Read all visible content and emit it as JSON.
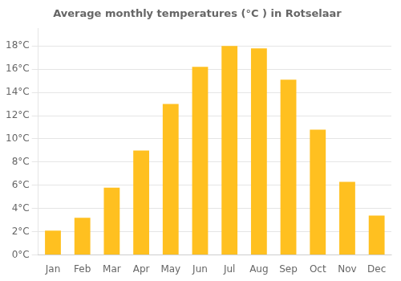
{
  "chart_data": {
    "type": "bar",
    "title": "Average monthly temperatures (°C ) in Rotselaar",
    "categories": [
      "Jan",
      "Feb",
      "Mar",
      "Apr",
      "May",
      "Jun",
      "Jul",
      "Aug",
      "Sep",
      "Oct",
      "Nov",
      "Dec"
    ],
    "values": [
      2.1,
      3.2,
      5.8,
      9.0,
      13.0,
      16.2,
      18.0,
      17.8,
      15.1,
      10.8,
      6.3,
      3.4
    ],
    "color": "#FFC020",
    "ylim": [
      0,
      19.5
    ],
    "yticks": [
      {
        "value": 0,
        "label": "0°C"
      },
      {
        "value": 2,
        "label": "2°C"
      },
      {
        "value": 4,
        "label": "4°C"
      },
      {
        "value": 6,
        "label": "6°C"
      },
      {
        "value": 8,
        "label": "8°C"
      },
      {
        "value": 10,
        "label": "10°C"
      },
      {
        "value": 12,
        "label": "12°C"
      },
      {
        "value": 14,
        "label": "14°C"
      },
      {
        "value": 16,
        "label": "16°C"
      },
      {
        "value": 18,
        "label": "18°C"
      }
    ],
    "grid": true
  }
}
